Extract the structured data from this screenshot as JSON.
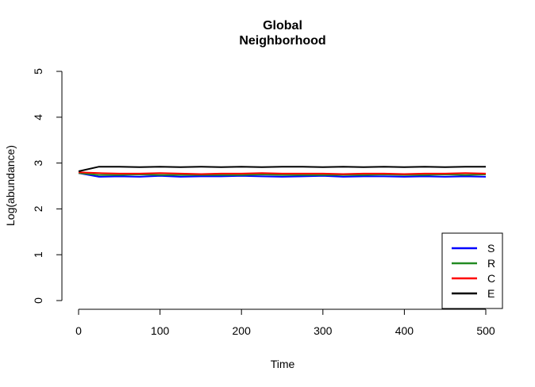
{
  "chart_data": {
    "type": "line",
    "title": "Global",
    "subtitle": "Neighborhood",
    "xlabel": "Time",
    "ylabel": "Log(abundance)",
    "xlim": [
      0,
      500
    ],
    "ylim": [
      0,
      5
    ],
    "x_ticks": [
      "0",
      "100",
      "200",
      "300",
      "400",
      "500"
    ],
    "y_ticks": [
      "0",
      "1",
      "2",
      "3",
      "4",
      "5"
    ],
    "grid": false,
    "legend_position": "bottom-right",
    "x": [
      0,
      25,
      50,
      75,
      100,
      125,
      150,
      175,
      200,
      225,
      250,
      275,
      300,
      325,
      350,
      375,
      400,
      425,
      450,
      475,
      500
    ],
    "series": [
      {
        "name": "S",
        "color": "#0000ff",
        "values": [
          2.78,
          2.7,
          2.71,
          2.7,
          2.72,
          2.7,
          2.71,
          2.71,
          2.72,
          2.71,
          2.7,
          2.71,
          2.72,
          2.7,
          2.71,
          2.71,
          2.7,
          2.71,
          2.7,
          2.71,
          2.7
        ]
      },
      {
        "name": "R",
        "color": "#228b22",
        "values": [
          2.78,
          2.74,
          2.74,
          2.75,
          2.74,
          2.74,
          2.74,
          2.74,
          2.74,
          2.75,
          2.74,
          2.74,
          2.74,
          2.74,
          2.74,
          2.75,
          2.74,
          2.74,
          2.75,
          2.74,
          2.75
        ]
      },
      {
        "name": "C",
        "color": "#ff0000",
        "values": [
          2.8,
          2.78,
          2.77,
          2.77,
          2.78,
          2.77,
          2.76,
          2.77,
          2.77,
          2.78,
          2.77,
          2.77,
          2.77,
          2.76,
          2.77,
          2.77,
          2.76,
          2.77,
          2.77,
          2.78,
          2.77
        ]
      },
      {
        "name": "E",
        "color": "#000000",
        "values": [
          2.82,
          2.92,
          2.92,
          2.91,
          2.92,
          2.91,
          2.92,
          2.91,
          2.92,
          2.91,
          2.92,
          2.92,
          2.91,
          2.92,
          2.91,
          2.92,
          2.91,
          2.92,
          2.91,
          2.92,
          2.92
        ]
      }
    ]
  }
}
